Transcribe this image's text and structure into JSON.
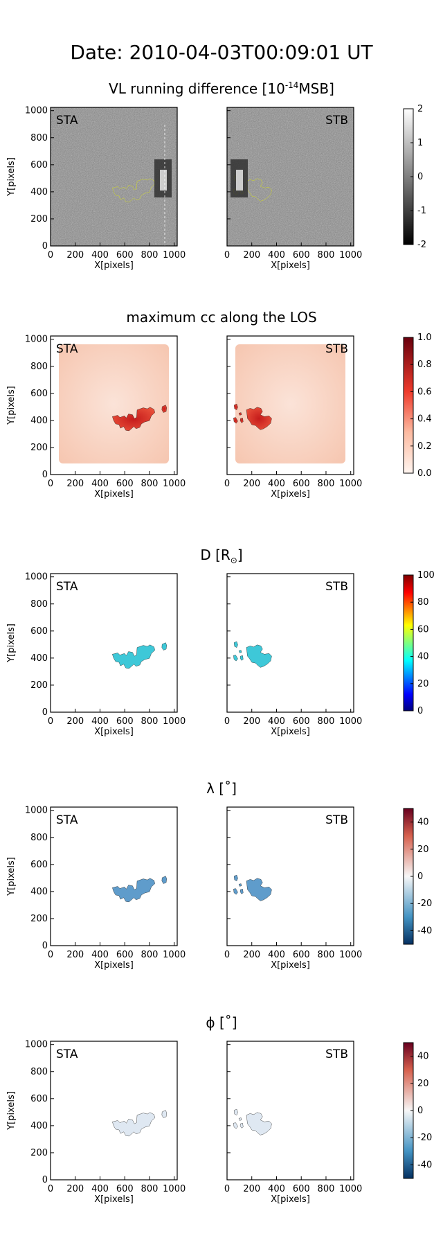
{
  "header": {
    "date_label": "Date: 2010-04-03T00:09:01 UT"
  },
  "colors": {
    "contour_yellow": "#d8e21a",
    "contour_dark": "#1a1a1a",
    "gray_bg": "#7f7f7f"
  },
  "chart_data": [
    {
      "type": "heatmap",
      "id": "vl",
      "title": "VL running difference [10",
      "title_sup": "-14",
      "title_tail": "MSB]",
      "panels": [
        "STA",
        "STB"
      ],
      "xlabel": "X[pixels]",
      "ylabel": "Y[pixels]",
      "xlim": [
        0,
        1024
      ],
      "ylim": [
        0,
        1024
      ],
      "xticks": [
        "0",
        "200",
        "400",
        "600",
        "800",
        "1000"
      ],
      "yticks": [
        "0",
        "200",
        "400",
        "600",
        "800",
        "1000"
      ],
      "colorbar": {
        "colormap": "gray",
        "range": [
          -2,
          2
        ],
        "ticks": [
          "2",
          "1",
          "0",
          "-1",
          "-2"
        ]
      },
      "contour_color": "yellow"
    },
    {
      "type": "heatmap",
      "id": "cc",
      "title": "maximum cc along the LOS",
      "panels": [
        "STA",
        "STB"
      ],
      "xlabel": "X[pixels]",
      "ylabel": "Y[pixels]",
      "xlim": [
        0,
        1024
      ],
      "ylim": [
        0,
        1024
      ],
      "xticks": [
        "0",
        "200",
        "400",
        "600",
        "800",
        "1000"
      ],
      "yticks": [
        "0",
        "200",
        "400",
        "600",
        "800",
        "1000"
      ],
      "colorbar": {
        "colormap": "reds",
        "range": [
          0.0,
          1.0
        ],
        "ticks": [
          "1.0",
          "0.8",
          "0.6",
          "0.4",
          "0.2",
          "0.0"
        ]
      },
      "contour_color": "black"
    },
    {
      "type": "heatmap",
      "id": "dist",
      "title": "D [R",
      "title_sub": "⊙",
      "title_tail": "]",
      "panels": [
        "STA",
        "STB"
      ],
      "xlabel": "X[pixels]",
      "ylabel": "Y[pixels]",
      "xlim": [
        0,
        1024
      ],
      "ylim": [
        0,
        1024
      ],
      "xticks": [
        "0",
        "200",
        "400",
        "600",
        "800",
        "1000"
      ],
      "yticks": [
        "0",
        "200",
        "400",
        "600",
        "800",
        "1000"
      ],
      "colorbar": {
        "colormap": "jet",
        "range": [
          0,
          100
        ],
        "ticks": [
          "100",
          "80",
          "60",
          "40",
          "20",
          "0"
        ]
      },
      "contour_color": "black"
    },
    {
      "type": "heatmap",
      "id": "lambda",
      "title": "λ [˚]",
      "panels": [
        "STA",
        "STB"
      ],
      "xlabel": "X[pixels]",
      "ylabel": "Y[pixels]",
      "xlim": [
        0,
        1024
      ],
      "ylim": [
        0,
        1024
      ],
      "xticks": [
        "0",
        "200",
        "400",
        "600",
        "800",
        "1000"
      ],
      "yticks": [
        "0",
        "200",
        "400",
        "600",
        "800",
        "1000"
      ],
      "colorbar": {
        "colormap": "rdbu",
        "range": [
          -50,
          50
        ],
        "ticks": [
          "40",
          "20",
          "0",
          "-20",
          "-40"
        ]
      },
      "contour_color": "black"
    },
    {
      "type": "heatmap",
      "id": "phi",
      "title": "ϕ [˚]",
      "panels": [
        "STA",
        "STB"
      ],
      "xlabel": "X[pixels]",
      "ylabel": "Y[pixels]",
      "xlim": [
        0,
        1024
      ],
      "ylim": [
        0,
        1024
      ],
      "xticks": [
        "0",
        "200",
        "400",
        "600",
        "800",
        "1000"
      ],
      "yticks": [
        "0",
        "200",
        "400",
        "600",
        "800",
        "1000"
      ],
      "colorbar": {
        "colormap": "rdbu",
        "range": [
          -50,
          50
        ],
        "ticks": [
          "40",
          "20",
          "0",
          "-20",
          "-40"
        ]
      },
      "contour_color": "black"
    }
  ]
}
